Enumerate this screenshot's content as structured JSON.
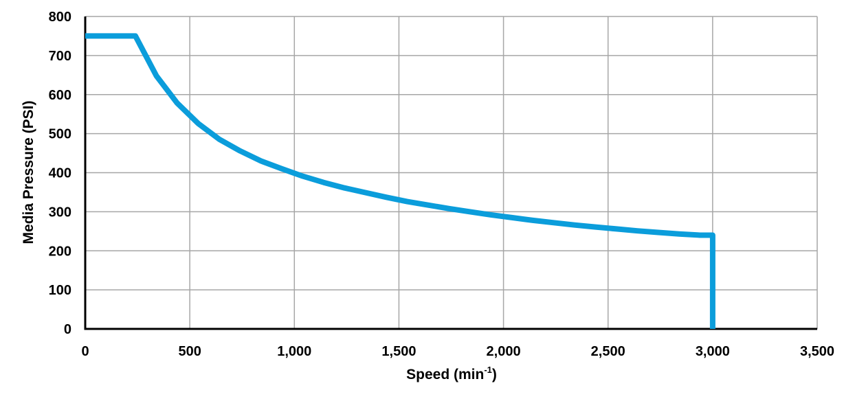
{
  "chart_data": {
    "type": "line",
    "xlabel": "Speed (min",
    "xlabel_superscript": "-1",
    "xlabel_suffix": ")",
    "ylabel": "Media Pressure (PSI)",
    "xlim": [
      0,
      3500
    ],
    "ylim": [
      0,
      800
    ],
    "xticks": [
      0,
      500,
      1000,
      1500,
      2000,
      2500,
      3000,
      3500
    ],
    "xtick_labels": [
      "0",
      "500",
      "1,000",
      "1,500",
      "2,000",
      "2,500",
      "3,000",
      "3,500"
    ],
    "yticks": [
      0,
      100,
      200,
      300,
      400,
      500,
      600,
      700,
      800
    ],
    "ytick_labels": [
      "0",
      "100",
      "200",
      "300",
      "400",
      "500",
      "600",
      "700",
      "800"
    ],
    "grid": true,
    "legend": "none",
    "series": [
      {
        "color": "#0b9ddb",
        "x": [
          0,
          240,
          340,
          440,
          540,
          640,
          740,
          840,
          940,
          1040,
          1140,
          1240,
          1340,
          1440,
          1540,
          1640,
          1740,
          1840,
          1940,
          2040,
          2140,
          2240,
          2340,
          2440,
          2540,
          2640,
          2740,
          2840,
          2940,
          3000,
          3000
        ],
        "y": [
          750,
          750,
          648,
          578,
          526,
          486,
          456,
          430,
          410,
          391,
          375,
          361,
          349,
          337,
          326,
          317,
          308,
          300,
          292,
          285,
          278,
          272,
          266,
          261,
          256,
          251,
          247,
          243,
          240,
          240,
          0
        ]
      }
    ]
  }
}
